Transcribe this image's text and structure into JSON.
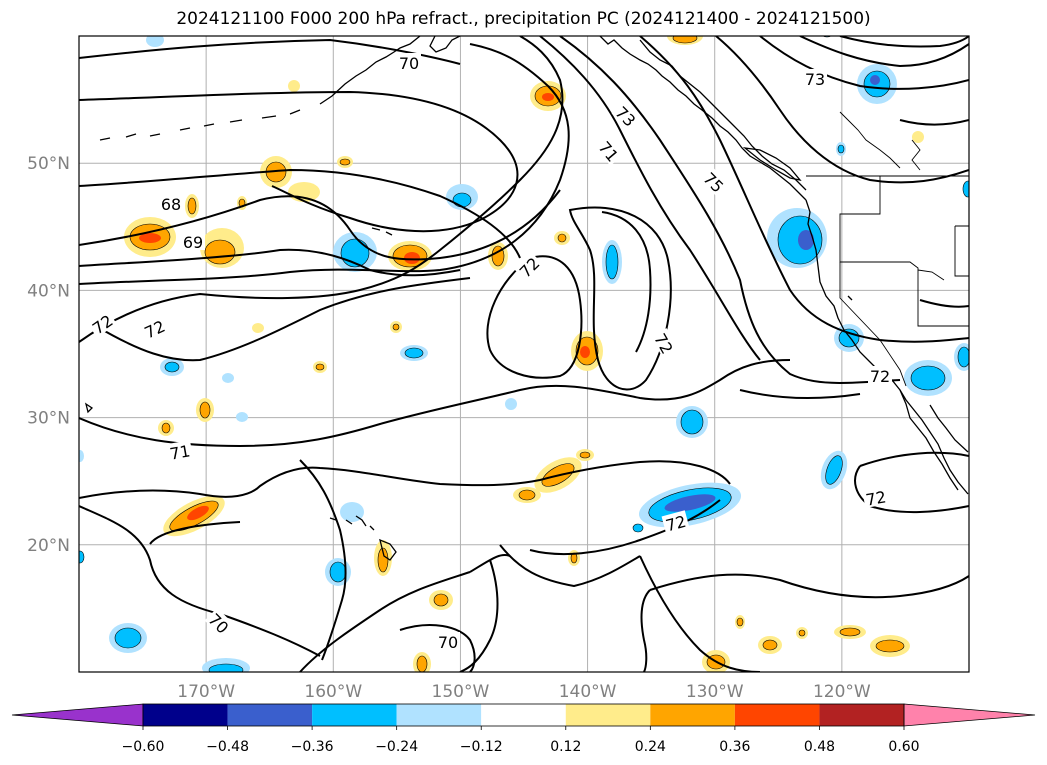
{
  "title": "2024121100 F000 200 hPa refract., precipitation PC (2024121400 - 2024121500)",
  "map": {
    "lon_range": [
      -180,
      -110
    ],
    "lat_range": [
      10,
      60
    ],
    "lat_ticks": [
      {
        "value": 50,
        "label": "50°N"
      },
      {
        "value": 40,
        "label": "40°N"
      },
      {
        "value": 30,
        "label": "30°N"
      },
      {
        "value": 20,
        "label": "20°N"
      }
    ],
    "lon_ticks": [
      {
        "value": -170,
        "label": "170°W"
      },
      {
        "value": -160,
        "label": "160°W"
      },
      {
        "value": -150,
        "label": "150°W"
      },
      {
        "value": -140,
        "label": "140°W"
      },
      {
        "value": -130,
        "label": "130°W"
      },
      {
        "value": -120,
        "label": "120°W"
      }
    ],
    "gridlines": true,
    "contour_labels": [
      "70",
      "73",
      "73",
      "71",
      "75",
      "68",
      "69",
      "72",
      "72",
      "72",
      "72",
      "72",
      "71",
      "72",
      "72",
      "70",
      "70"
    ]
  },
  "colorbar": {
    "ticks": [
      "−0.60",
      "−0.48",
      "−0.36",
      "−0.24",
      "−0.12",
      "0.12",
      "0.24",
      "0.36",
      "0.48",
      "0.60"
    ],
    "colors": [
      "#9932cc",
      "#00008b",
      "#3a5fcd",
      "#00bfff",
      "#b0e2ff",
      "#ffffff",
      "#ffec8b",
      "#ffa500",
      "#ff4500",
      "#b22222",
      "#ff82ab"
    ]
  }
}
